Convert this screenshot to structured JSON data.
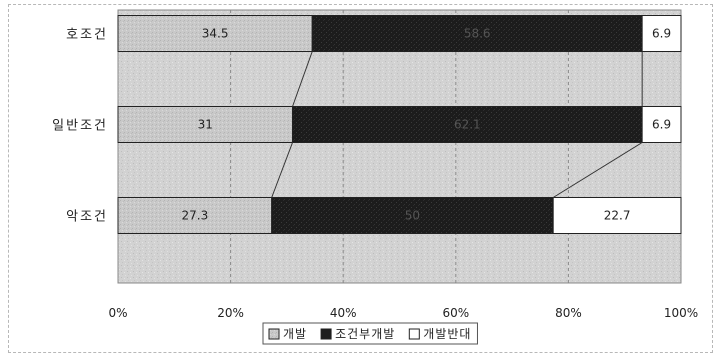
{
  "chart_data": {
    "type": "bar",
    "orientation": "horizontal",
    "stacked": "percent",
    "categories": [
      "호조건",
      "일반조건",
      "악조건"
    ],
    "series": [
      {
        "name": "개발",
        "values": [
          34.5,
          31,
          27.3
        ],
        "color": "#c8c8c8"
      },
      {
        "name": "조건부개발",
        "values": [
          58.6,
          62.1,
          50
        ],
        "color": "#1e1e1e"
      },
      {
        "name": "개발반대",
        "values": [
          6.9,
          6.9,
          22.7
        ],
        "color": "#ffffff"
      }
    ],
    "xlim": [
      0,
      100
    ],
    "xticks": [
      "0%",
      "20%",
      "40%",
      "60%",
      "80%",
      "100%"
    ],
    "grid": true,
    "connector_lines": true,
    "legend_position": "bottom",
    "background_color": "#d4d4d4"
  }
}
